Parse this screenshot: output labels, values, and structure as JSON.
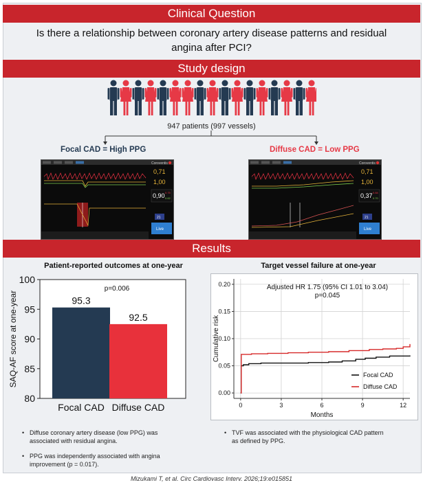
{
  "question": {
    "header": "Clinical Question",
    "text": "Is there a relationship between coronary artery disease patterns and residual angina after PCI?"
  },
  "design": {
    "header": "Study design",
    "patients_text": "947 patients (997 vessels)",
    "focal_label": "Focal CAD = High PPG",
    "diffuse_label": "Diffuse CAD = Low PPG",
    "people_pattern": [
      "navy",
      "red",
      "navy",
      "red",
      "navy",
      "red",
      "red",
      "navy",
      "red",
      "navy",
      "red",
      "navy",
      "red",
      "navy",
      "red",
      "navy",
      "red"
    ],
    "colors": {
      "navy": "#243a52",
      "red": "#e63946",
      "accent_red": "#c8252c"
    },
    "monitor_focal": {
      "brand": "Coroventis",
      "r1": "0,71",
      "r2": "1,00",
      "r3": "0,90",
      "r3_sup": "0.75",
      "r3_sub": "0.62",
      "small": "21",
      "live": "Live"
    },
    "monitor_diffuse": {
      "brand": "Coroventis",
      "r1": "0,71",
      "r2": "1,00",
      "r3": "0,37",
      "r3_sup": "0.84",
      "r3_sub": "0.70",
      "small": "21",
      "live": "Live"
    }
  },
  "results": {
    "header": "Results",
    "left_title": "Patient-reported outcomes at one-year",
    "right_title": "Target vessel failure at one-year",
    "left_bullets": [
      "Diffuse coronary artery disease (low PPG) was associated with residual angina.",
      "PPG was independently associated with angina improvement (p = 0.017)."
    ],
    "right_bullets": [
      "TVF was associated with the physiological CAD pattern as defined by PPG."
    ]
  },
  "chart_data": [
    {
      "type": "bar",
      "title": "Patient-reported outcomes at one-year",
      "categories": [
        "Focal CAD",
        "Diffuse CAD"
      ],
      "values": [
        95.3,
        92.5
      ],
      "value_labels": [
        "95.3",
        "92.5"
      ],
      "colors": [
        "#243a52",
        "#e8313b"
      ],
      "ylabel": "SAQ-AF score at one-year",
      "ylim": [
        80,
        100
      ],
      "yticks": [
        80,
        85,
        90,
        95,
        100
      ],
      "ytick_labels": [
        "80",
        "85",
        "90",
        "95",
        "100"
      ],
      "annotation": "p=0.006"
    },
    {
      "type": "line",
      "title": "Target vessel failure at one-year",
      "xlabel": "Months",
      "ylabel": "Cumulative risk",
      "xlim": [
        -0.5,
        12.5
      ],
      "ylim": [
        -0.01,
        0.21
      ],
      "xticks": [
        0,
        3,
        6,
        9,
        12
      ],
      "xtick_labels": [
        "0",
        "3",
        "6",
        "9",
        "12"
      ],
      "yticks": [
        0.0,
        0.05,
        0.1,
        0.15,
        0.2
      ],
      "ytick_labels": [
        "0.00",
        "0.05",
        "0.10",
        "0.15",
        "0.20"
      ],
      "annotation_1": "Adjusted HR 1.75 (95% CI 1.01 to 3.04)",
      "annotation_2": "p=0.045",
      "legend": "bottom-right",
      "series": [
        {
          "name": "Focal CAD",
          "color": "#111111",
          "x": [
            0,
            0.05,
            0.2,
            0.6,
            1.5,
            3.0,
            5.0,
            6.5,
            7.5,
            8.5,
            9.2,
            10.0,
            11.0,
            12.5
          ],
          "y": [
            0,
            0.05,
            0.052,
            0.054,
            0.055,
            0.055,
            0.056,
            0.057,
            0.059,
            0.062,
            0.064,
            0.066,
            0.068,
            0.069
          ]
        },
        {
          "name": "Diffuse CAD",
          "color": "#d62828",
          "x": [
            0,
            0.05,
            0.8,
            2.0,
            3.5,
            5.0,
            6.5,
            8.0,
            9.5,
            10.5,
            11.5,
            12.0,
            12.5
          ],
          "y": [
            0,
            0.071,
            0.072,
            0.073,
            0.074,
            0.075,
            0.076,
            0.078,
            0.08,
            0.081,
            0.082,
            0.085,
            0.09
          ]
        }
      ]
    }
  ],
  "citation": "Mizukami T, et al. Circ Cardiovasc Interv. 2026;19:e015851"
}
